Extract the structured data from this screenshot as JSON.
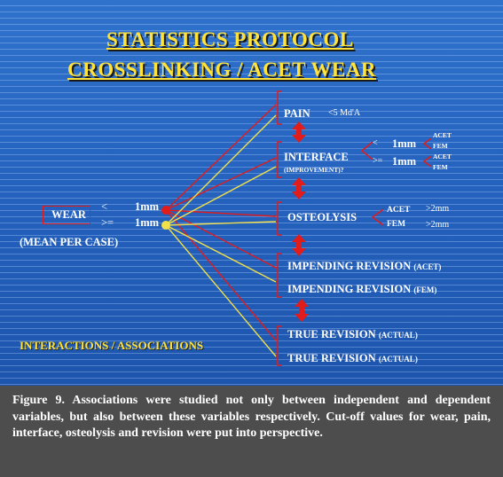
{
  "slide": {
    "title_line1": "STATISTICS PROTOCOL",
    "title_line2": "CROSSLINKING / ACET WEAR",
    "wear": {
      "label": "WEAR",
      "lt": "<",
      "gte": ">=",
      "value1": "1mm",
      "value2": "1mm",
      "note": "(MEAN PER CASE)"
    },
    "pain": {
      "label": "PAIN",
      "cutoff": "<5 Md'A"
    },
    "interface": {
      "label": "INTERFACE",
      "sub": "(IMPROVEMENT)?",
      "lt": "<",
      "gte": ">=",
      "value1": "1mm",
      "value2": "1mm",
      "acet1": "ACET",
      "fem1": "FEM",
      "acet2": "ACET",
      "fem2": "FEM"
    },
    "osteolysis": {
      "label": "OSTEOLYSIS",
      "acet": "ACET",
      "fem": "FEM",
      "acet_value": ">2mm",
      "fem_value": ">2mm"
    },
    "impending_acet": {
      "label": "IMPENDING REVISION",
      "qualifier": "(ACET)"
    },
    "impending_fem": {
      "label": "IMPENDING REVISION",
      "qualifier": "(FEM)"
    },
    "true_revision_1": {
      "label": "TRUE REVISION",
      "qualifier": "(ACTUAL)"
    },
    "true_revision_2": {
      "label": "TRUE REVISION",
      "qualifier": "(ACTUAL)"
    },
    "interactions": "INTERACTIONS / ASSOCIATIONS",
    "colors": {
      "title": "#ffe23a",
      "red": "#e21b1b",
      "yellow": "#f2e04a",
      "background": "#2563bf"
    }
  },
  "caption": "Figure 9. Associations were studied not only between independent and dependent variables, but also between these variables respectively. Cut-off values for wear, pain, interface, osteolysis and revision were put into perspective."
}
